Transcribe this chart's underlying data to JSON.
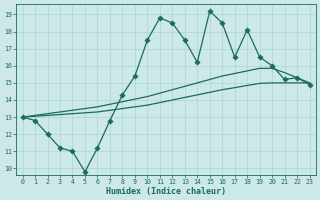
{
  "xlabel": "Humidex (Indice chaleur)",
  "bg_color": "#cce8e8",
  "line_color": "#1a6b60",
  "grid_color": "#aad4d4",
  "xlim": [
    -0.5,
    23.5
  ],
  "ylim": [
    9.6,
    19.6
  ],
  "xticks": [
    0,
    1,
    2,
    3,
    4,
    5,
    6,
    7,
    8,
    9,
    10,
    11,
    12,
    13,
    14,
    15,
    16,
    17,
    18,
    19,
    20,
    21,
    22,
    23
  ],
  "yticks": [
    10,
    11,
    12,
    13,
    14,
    15,
    16,
    17,
    18,
    19
  ],
  "series1_x": [
    0,
    1,
    2,
    3,
    4,
    5,
    6,
    7,
    8,
    9,
    10,
    11,
    12,
    13,
    14,
    15,
    16,
    17,
    18,
    19,
    20,
    21,
    22,
    23
  ],
  "series1_y": [
    13.0,
    12.8,
    12.0,
    11.2,
    11.0,
    9.8,
    11.2,
    12.8,
    14.3,
    15.4,
    17.5,
    18.8,
    18.5,
    17.5,
    16.2,
    19.2,
    18.5,
    16.5,
    18.1,
    16.5,
    16.0,
    15.2,
    15.3,
    14.9
  ],
  "series2_x": [
    0,
    1,
    2,
    3,
    4,
    5,
    6,
    7,
    8,
    9,
    10,
    11,
    12,
    13,
    14,
    15,
    16,
    17,
    18,
    19,
    20,
    21,
    22,
    23
  ],
  "series2_y": [
    13.0,
    13.1,
    13.2,
    13.3,
    13.4,
    13.5,
    13.6,
    13.75,
    13.9,
    14.05,
    14.2,
    14.4,
    14.6,
    14.8,
    15.0,
    15.2,
    15.4,
    15.55,
    15.7,
    15.85,
    15.85,
    15.6,
    15.3,
    15.0
  ],
  "series3_x": [
    0,
    1,
    2,
    3,
    4,
    5,
    6,
    7,
    8,
    9,
    10,
    11,
    12,
    13,
    14,
    15,
    16,
    17,
    18,
    19,
    20,
    21,
    22,
    23
  ],
  "series3_y": [
    13.0,
    13.05,
    13.1,
    13.15,
    13.2,
    13.25,
    13.3,
    13.4,
    13.5,
    13.6,
    13.7,
    13.85,
    14.0,
    14.15,
    14.3,
    14.45,
    14.6,
    14.72,
    14.85,
    14.97,
    15.0,
    15.0,
    15.0,
    15.0
  ],
  "markersize": 2.8,
  "linewidth": 0.9
}
